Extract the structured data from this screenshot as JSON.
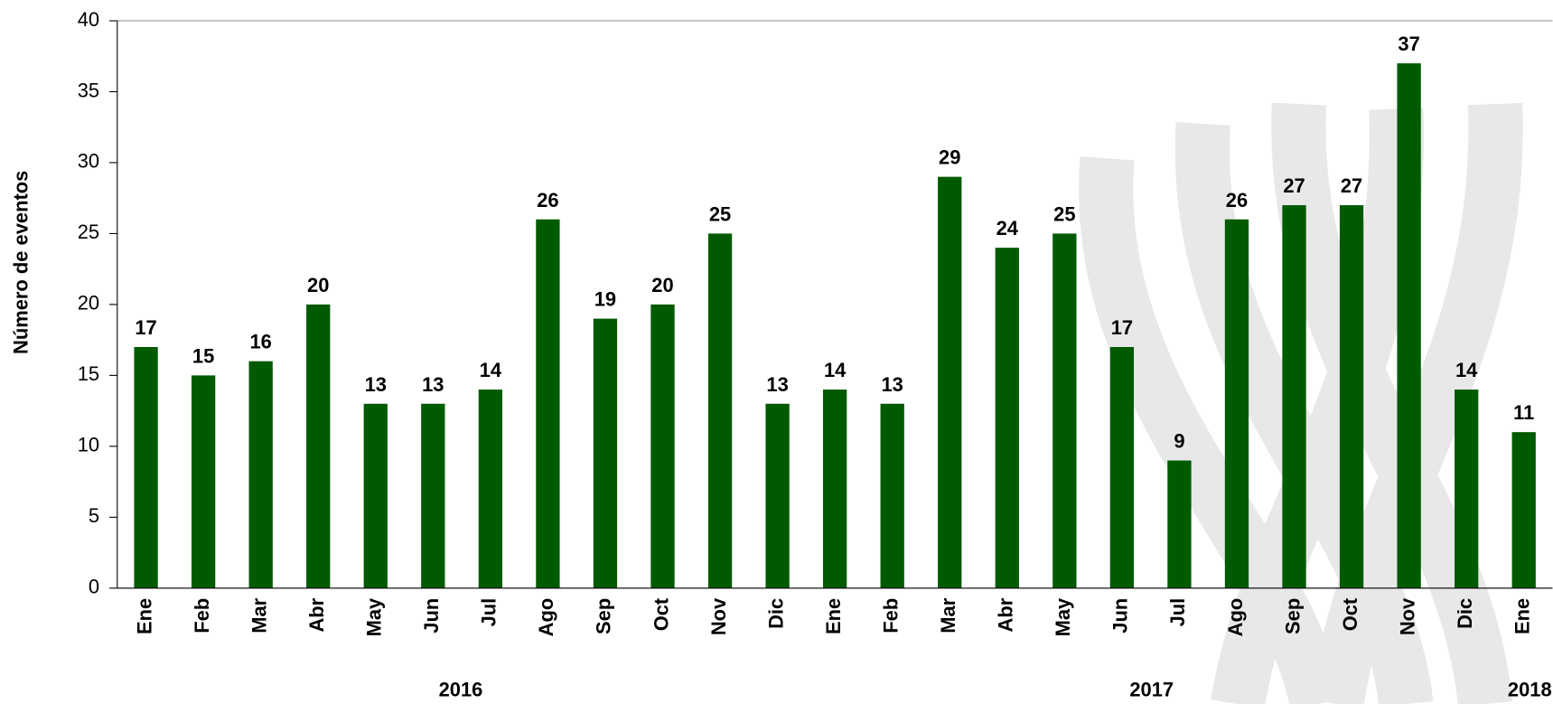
{
  "chart_data": {
    "type": "bar",
    "y_axis_label": "Número de eventos",
    "categories": [
      "Ene",
      "Feb",
      "Mar",
      "Abr",
      "May",
      "Jun",
      "Jul",
      "Ago",
      "Sep",
      "Oct",
      "Nov",
      "Dic",
      "Ene",
      "Feb",
      "Mar",
      "Abr",
      "May",
      "Jun",
      "Jul",
      "Ago",
      "Sep",
      "Oct",
      "Nov",
      "Dic",
      "Ene"
    ],
    "values": [
      17,
      15,
      16,
      20,
      13,
      13,
      14,
      26,
      19,
      20,
      25,
      13,
      14,
      13,
      29,
      24,
      25,
      17,
      9,
      26,
      27,
      27,
      37,
      14,
      11
    ],
    "year_labels": [
      "2016",
      "2017",
      "2018"
    ],
    "color": "#005a00",
    "ylim": [
      0,
      40
    ],
    "yticks": [
      0,
      5,
      10,
      15,
      20,
      25,
      30,
      35,
      40
    ],
    "grid": false
  }
}
